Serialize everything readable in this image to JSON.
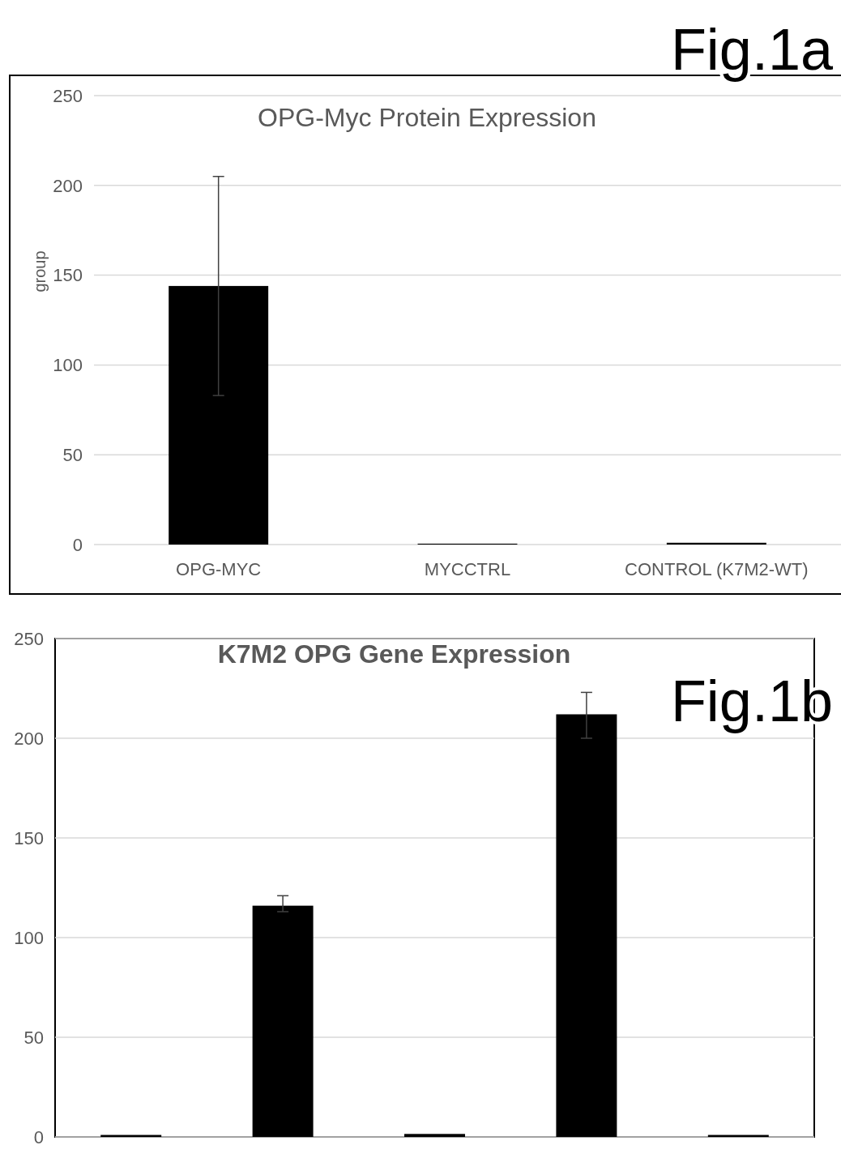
{
  "chart_data": [
    {
      "type": "bar",
      "title": "OPG-Myc Protein Expression",
      "ylabel": "group",
      "categories": [
        "OPG-MYC",
        "MYCCTRL",
        "CONTROL (K7M2-WT)"
      ],
      "values": [
        144,
        0.5,
        1
      ],
      "errors": [
        [
          83,
          205
        ],
        null,
        null
      ],
      "color": "#000000",
      "ylim": [
        0,
        250
      ],
      "yticks": [
        0,
        50,
        100,
        150,
        200,
        250
      ],
      "grid": "y",
      "annotations": [
        "Fig.1a"
      ]
    },
    {
      "type": "bar",
      "title": "K7M2 OPG Gene Expression",
      "categories": [
        null,
        null,
        null,
        null,
        null
      ],
      "values": [
        1,
        116,
        1.5,
        212,
        1
      ],
      "errors": [
        null,
        [
          113,
          121
        ],
        null,
        [
          200,
          223
        ],
        null
      ],
      "color": "#000000",
      "ylim": [
        0,
        250
      ],
      "yticks": [
        0,
        50,
        100,
        150,
        200,
        250
      ],
      "grid": "y",
      "annotations": [
        "Fig.1b"
      ]
    }
  ]
}
